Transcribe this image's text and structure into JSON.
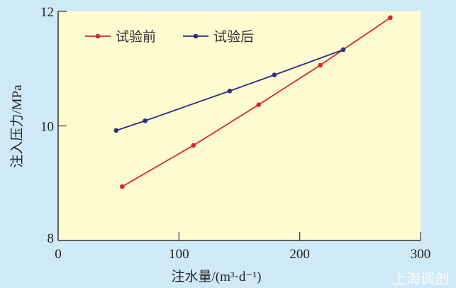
{
  "chart_data": {
    "type": "line",
    "xlabel": "注水量/(m³·d⁻¹)",
    "ylabel": "注入压力/MPa",
    "xlim": [
      0,
      300
    ],
    "ylim": [
      8,
      12
    ],
    "x_ticks": [
      "0",
      "100",
      "200",
      "300"
    ],
    "y_ticks": [
      "8",
      "10",
      "12"
    ],
    "grid": false,
    "legend_position": "top-left",
    "series": [
      {
        "name": "试验前",
        "color": "#d42a2a",
        "x": [
          53,
          112,
          166,
          217,
          275
        ],
        "y": [
          8.94,
          9.66,
          10.37,
          11.06,
          11.89
        ]
      },
      {
        "name": "试验后",
        "color": "#2b2f86",
        "x": [
          48,
          72,
          142,
          179,
          236
        ],
        "y": [
          9.92,
          10.09,
          10.61,
          10.89,
          11.33
        ]
      }
    ]
  },
  "watermark": "上海调剖"
}
